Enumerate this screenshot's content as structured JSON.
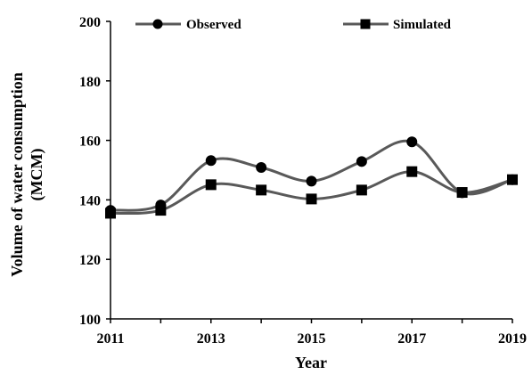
{
  "chart_data": {
    "type": "line",
    "x": [
      2011,
      2012,
      2013,
      2014,
      2015,
      2016,
      2017,
      2018,
      2019
    ],
    "series": [
      {
        "name": "Observed",
        "marker": "circle",
        "values": [
          136.5,
          138.3,
          153.2,
          150.9,
          146.3,
          152.9,
          159.5,
          142.4,
          146.8
        ]
      },
      {
        "name": "Simulated",
        "marker": "square",
        "values": [
          135.5,
          136.5,
          145.1,
          143.3,
          140.3,
          143.3,
          149.5,
          142.5,
          146.8
        ]
      }
    ],
    "xlabel": "Year",
    "ylabel": "Volume of water consumption",
    "ylabel_unit": "(MCM)",
    "ylim": [
      100,
      200
    ],
    "yticks": [
      100,
      120,
      140,
      160,
      180,
      200
    ],
    "xticks": [
      2011,
      2013,
      2015,
      2017,
      2019
    ],
    "xtick_labels": [
      "2011",
      "2013",
      "2015",
      "2017",
      "2019"
    ],
    "xlim": [
      2011,
      2019
    ],
    "grid": false,
    "legend": "top",
    "line_color": "#595959",
    "marker_color": "#000000"
  }
}
